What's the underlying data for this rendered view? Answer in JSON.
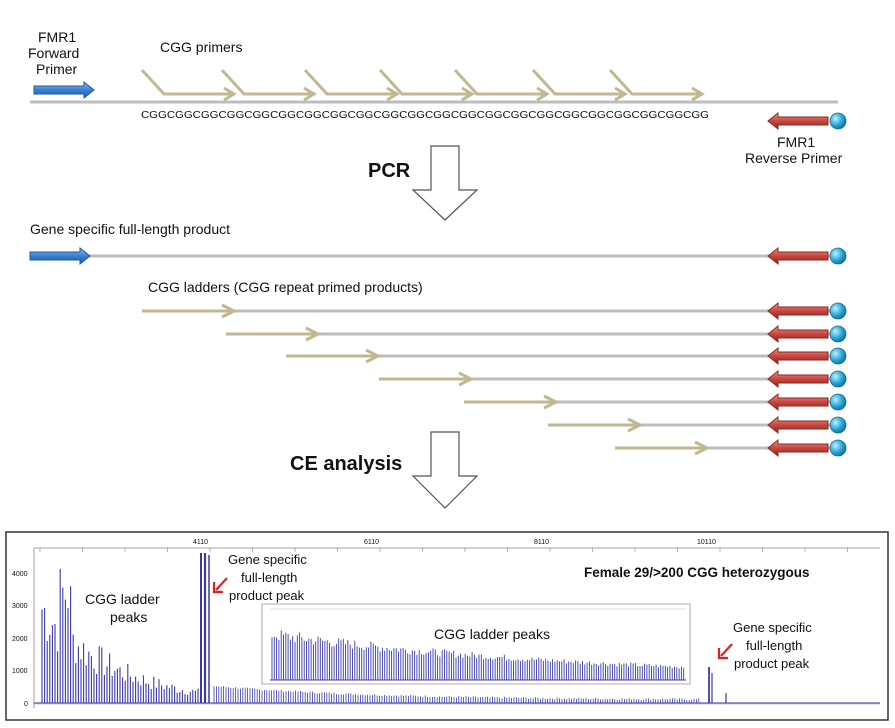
{
  "primers": {
    "forward_line1": "FMR1",
    "forward_line2": "Forward",
    "forward_line3": "Primer",
    "cgg_primers": "CGG primers",
    "reverse_line1": "FMR1",
    "reverse_line2": "Reverse Primer",
    "sequence": "CGGCGGCGGCGGCGGCGGCGGCGGCGGCGGCGGCGGCGGCGGCGGCGGCGGCGGCGGCGGCGGCGG"
  },
  "steps": {
    "pcr": "PCR",
    "ce": "CE analysis"
  },
  "products": {
    "full_length": "Gene specific full-length product",
    "ladders": "CGG ladders (CGG repeat primed products)"
  },
  "electropherogram": {
    "title": "Female 29/>200 CGG heterozygous",
    "x_ticks": [
      "4110",
      "6110",
      "8110",
      "10110"
    ],
    "y_ticks": [
      "0",
      "1000",
      "2000",
      "3000",
      "4000"
    ],
    "ladder_label_line1": "CGG ladder",
    "ladder_label_line2": "peaks",
    "peak1_line1": "Gene specific",
    "peak1_line2": "full-length",
    "peak1_line3": "product peak",
    "peak2_line1": "Gene specific",
    "peak2_line2": "full-length",
    "peak2_line3": "product peak",
    "inset_label": "CGG ladder peaks"
  },
  "colors": {
    "forward_primer": "#3a7fd0",
    "reverse_primer": "#c8463f",
    "bead": "#27a6d6",
    "cgg_arrow": "#bfb890",
    "dna_line": "#bdbdbd",
    "trace": "#3a3aa8",
    "red_arrow": "#e02020"
  },
  "icons": {
    "forward": "blue-arrow-right",
    "reverse": "red-arrow-left-with-bead",
    "step": "hollow-down-arrow"
  }
}
